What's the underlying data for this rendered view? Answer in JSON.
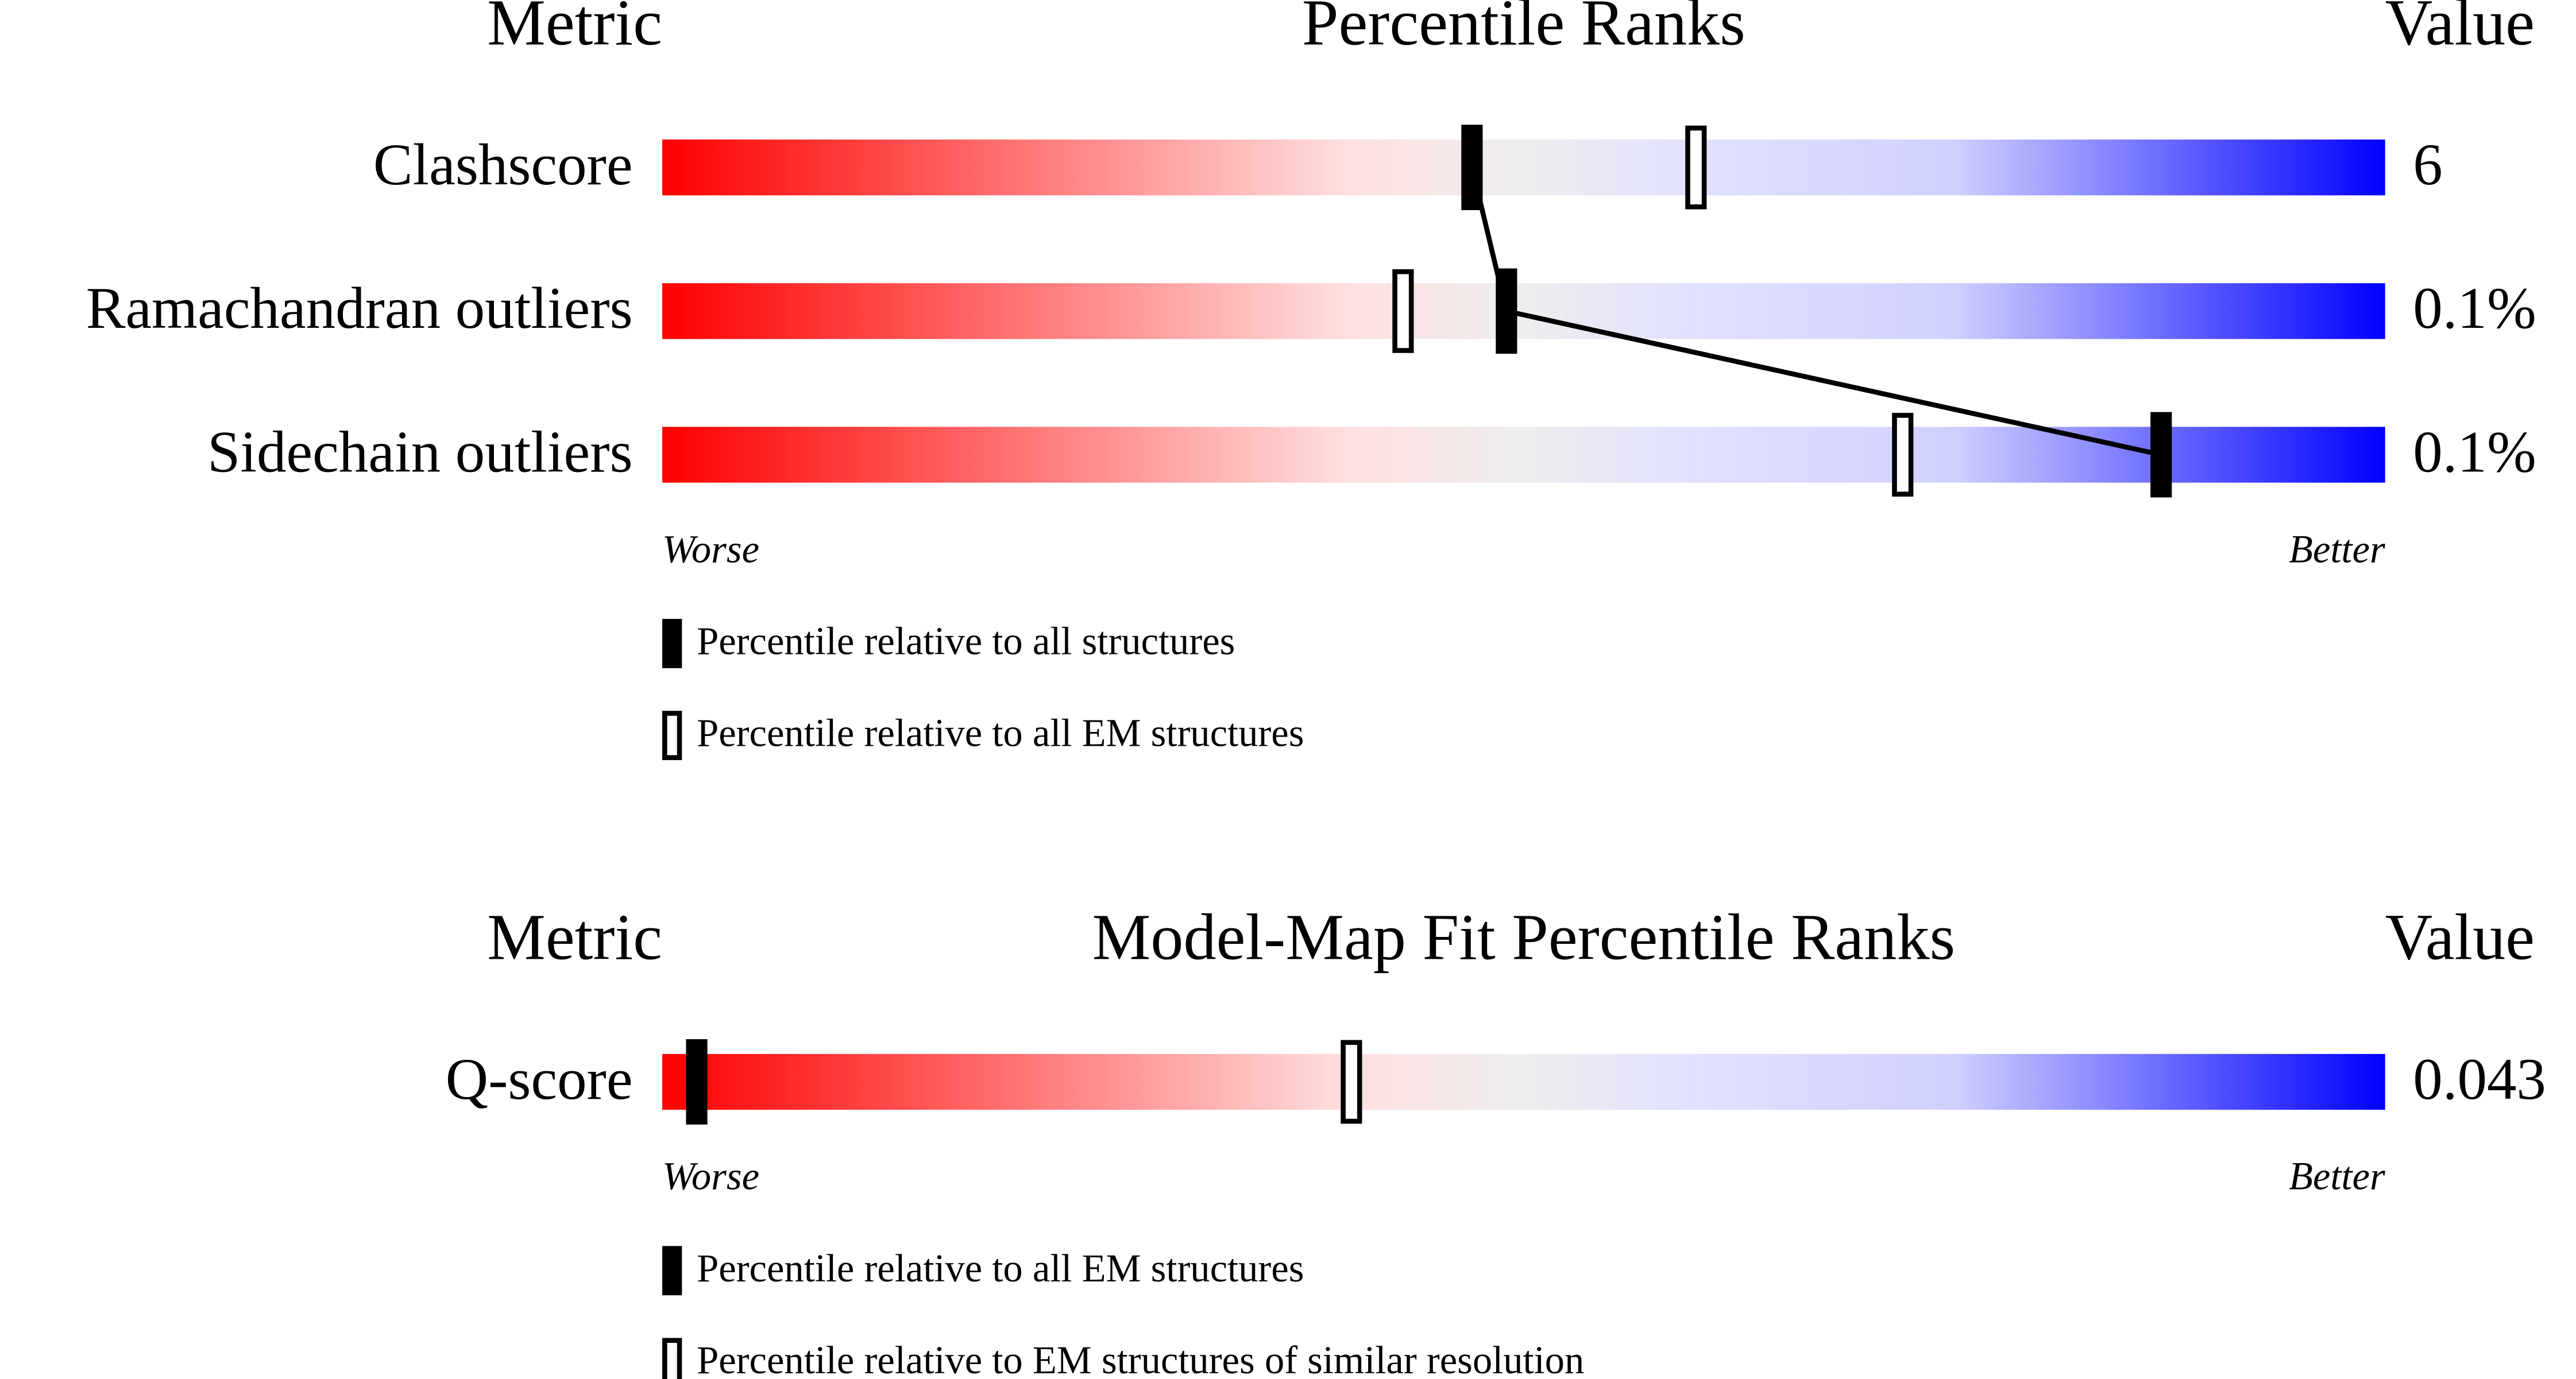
{
  "chart_data": [
    {
      "type": "percentile",
      "metric_header": "Metric",
      "title": "Percentile Ranks",
      "value_header": "Value",
      "categories": [
        "Clashscore",
        "Ramachandran outliers",
        "Sidechain outliers"
      ],
      "metric_values": [
        "6",
        "0.1%",
        "0.1%"
      ],
      "xlim": [
        0,
        100
      ],
      "worse_label": "Worse",
      "better_label": "Better",
      "connect": true,
      "series": [
        {
          "name": "Percentile relative to all structures",
          "style": "filled",
          "color": "#000000",
          "values": [
            47,
            49,
            87
          ]
        },
        {
          "name": "Percentile relative to all EM structures",
          "style": "open",
          "color": "#000000",
          "values": [
            60,
            43,
            72
          ]
        }
      ]
    },
    {
      "type": "percentile",
      "metric_header": "Metric",
      "title": "Model-Map Fit Percentile Ranks",
      "value_header": "Value",
      "categories": [
        "Q-score"
      ],
      "metric_values": [
        "0.043"
      ],
      "xlim": [
        0,
        100
      ],
      "worse_label": "Worse",
      "better_label": "Better",
      "connect": false,
      "series": [
        {
          "name": "Percentile relative to all EM structures",
          "style": "filled",
          "color": "#000000",
          "values": [
            2
          ]
        },
        {
          "name": "Percentile relative to EM structures of similar resolution",
          "style": "open",
          "color": "#000000",
          "values": [
            40
          ]
        }
      ]
    }
  ]
}
